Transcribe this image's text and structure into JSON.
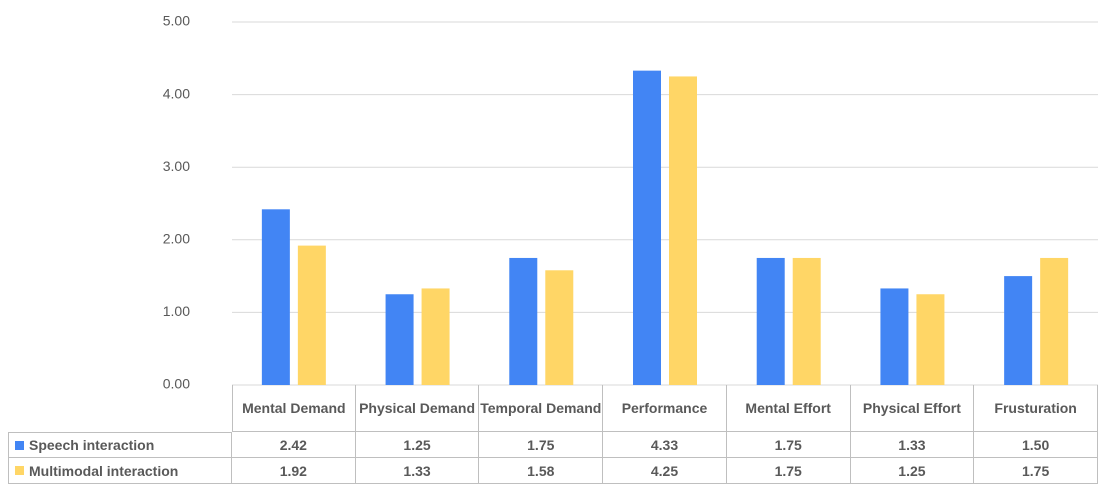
{
  "chart_data": {
    "type": "bar",
    "categories": [
      "Mental Demand",
      "Physical Demand",
      "Temporal Demand",
      "Performance",
      "Mental Effort",
      "Physical Effort",
      "Frusturation"
    ],
    "series": [
      {
        "name": "Speech interaction",
        "color": "#4285f4",
        "values": [
          2.42,
          1.25,
          1.75,
          4.33,
          1.75,
          1.33,
          1.5
        ],
        "value_labels": [
          "2.42",
          "1.25",
          "1.75",
          "4.33",
          "1.75",
          "1.33",
          "1.50"
        ]
      },
      {
        "name": "Multimodal interaction",
        "color": "#ffd666",
        "values": [
          1.92,
          1.33,
          1.58,
          4.25,
          1.75,
          1.25,
          1.75
        ],
        "value_labels": [
          "1.92",
          "1.33",
          "1.58",
          "4.25",
          "1.75",
          "1.25",
          "1.75"
        ]
      }
    ],
    "ylim": [
      0,
      5
    ],
    "yticks": [
      {
        "value": 0,
        "label": "0.00"
      },
      {
        "value": 1,
        "label": "1.00"
      },
      {
        "value": 2,
        "label": "2.00"
      },
      {
        "value": 3,
        "label": "3.00"
      },
      {
        "value": 4,
        "label": "4.00"
      },
      {
        "value": 5,
        "label": "5.00"
      }
    ],
    "grid": true
  }
}
